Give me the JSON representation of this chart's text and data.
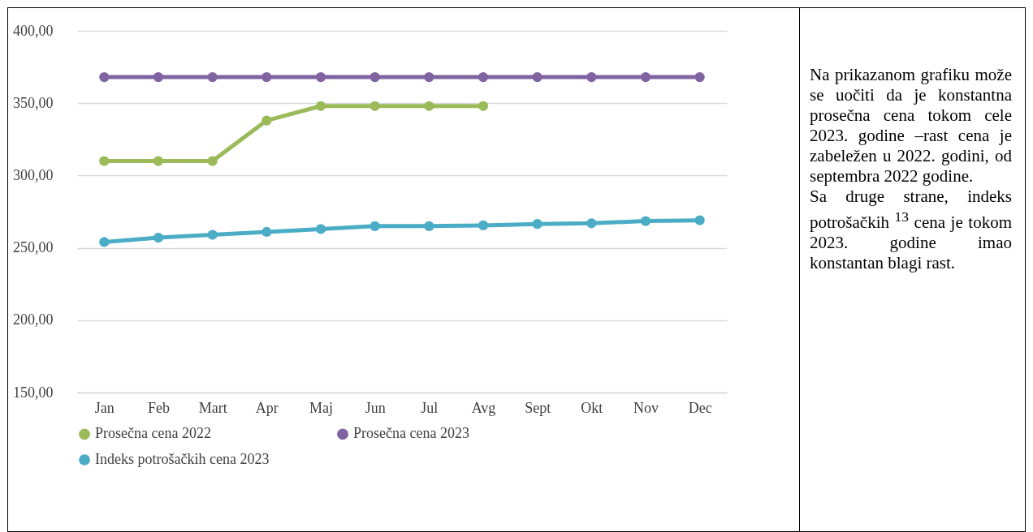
{
  "chart_data": [
    {
      "type": "line",
      "categories": [
        "Jan",
        "Feb",
        "Mart",
        "Apr",
        "Maj",
        "Jun",
        "Jul",
        "Avg",
        "Sept",
        "Okt",
        "Nov",
        "Dec"
      ],
      "series": [
        {
          "name": "Prosečna cena 2022",
          "color": "#9bbb59",
          "values": [
            310,
            310,
            310,
            338,
            348,
            348,
            348,
            348,
            null,
            null,
            null,
            null
          ]
        },
        {
          "name": "Prosečna cena 2023",
          "color": "#8064a2",
          "values": [
            368,
            368,
            368,
            368,
            368,
            368,
            368,
            368,
            368,
            368,
            368,
            368
          ]
        },
        {
          "name": "Indeks potrošačkih cena 2023",
          "color": "#4bacc6",
          "values": [
            254,
            257,
            259,
            261,
            263,
            265,
            265,
            265.5,
            266.5,
            267,
            268.5,
            269
          ]
        }
      ],
      "ylim": [
        150,
        400
      ],
      "yticks": [
        {
          "value": 150,
          "label": "150,00"
        },
        {
          "value": 200,
          "label": "200,00"
        },
        {
          "value": 250,
          "label": "250,00"
        },
        {
          "value": 300,
          "label": "300,00"
        },
        {
          "value": 350,
          "label": "350,00"
        },
        {
          "value": 400,
          "label": "400,00"
        }
      ],
      "grid": "y",
      "legend": "bottom",
      "marker": "circle",
      "line_style": "solid"
    },
    {
      "type": "other",
      "annotations": [
        "Na prikazanom grafiku može se uočiti da je konstantna prosečna cena tokom cele 2023. godine –rast cena je zabeležen u 2022. godini, od septembra 2022 godine.",
        "Sa druge strane, indeks potrošačkih $^{13}$ cena je tokom 2023. godine imao konstantan blagi rast."
      ]
    }
  ]
}
